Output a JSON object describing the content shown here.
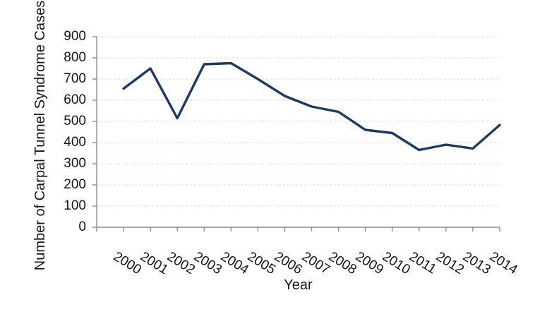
{
  "chart_data": {
    "type": "line",
    "title": "",
    "xlabel": "Year",
    "ylabel": "Number of Carpal Tunnel Syndrome Cases",
    "categories": [
      "2000",
      "2001",
      "2002",
      "2003",
      "2004",
      "2005",
      "2006",
      "2007",
      "2008",
      "2009",
      "2010",
      "2011",
      "2012",
      "2013",
      "2014"
    ],
    "series": [
      {
        "name": "Number of Carpal Tunnel Syndrome Cases",
        "values": [
          655,
          750,
          515,
          770,
          775,
          700,
          620,
          570,
          545,
          460,
          445,
          365,
          390,
          372,
          483
        ]
      }
    ],
    "ylim": [
      0,
      900
    ],
    "yticks": [
      0,
      100,
      200,
      300,
      400,
      500,
      600,
      700,
      800,
      900
    ],
    "grid": true,
    "gridline_style": "dashed",
    "legend": false,
    "colors": {
      "line": "#1F3A5E",
      "axis": "#8C8C8C",
      "gridline": "#D9D9D9",
      "text": "#161616",
      "background": "#FFFFFF"
    }
  }
}
